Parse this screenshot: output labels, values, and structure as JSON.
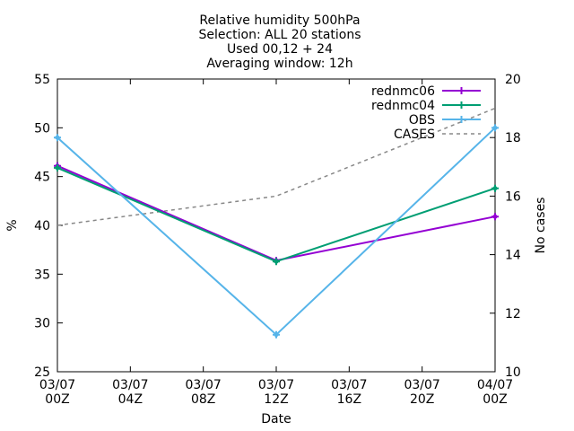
{
  "chart_data": {
    "type": "line",
    "title_lines": [
      "Relative humidity 500hPa",
      "Selection: ALL      20 stations",
      "Used 00,12 + 24",
      "Averaging window: 12h"
    ],
    "xlabel": "Date",
    "ylabel": "%",
    "y2label": "No cases",
    "x_ticks": [
      {
        "date": "03/07",
        "hour": "00Z"
      },
      {
        "date": "03/07",
        "hour": "04Z"
      },
      {
        "date": "03/07",
        "hour": "08Z"
      },
      {
        "date": "03/07",
        "hour": "12Z"
      },
      {
        "date": "03/07",
        "hour": "16Z"
      },
      {
        "date": "03/07",
        "hour": "20Z"
      },
      {
        "date": "04/07",
        "hour": "00Z"
      }
    ],
    "x_hours_range": [
      0,
      24
    ],
    "ylim": [
      25,
      55
    ],
    "y_ticks": [
      25,
      30,
      35,
      40,
      45,
      50,
      55
    ],
    "y2lim": [
      10,
      20
    ],
    "y2_ticks": [
      10,
      12,
      14,
      16,
      18,
      20
    ],
    "legend_position": "top-right",
    "series": [
      {
        "name": "rednmc06",
        "color": "#9400d3",
        "axis": "y",
        "marker": "plus",
        "points": [
          {
            "hour": 0,
            "value": 46.1
          },
          {
            "hour": 12,
            "value": 36.4
          },
          {
            "hour": 24,
            "value": 40.9
          }
        ]
      },
      {
        "name": "rednmc04",
        "color": "#009e73",
        "axis": "y",
        "marker": "plus",
        "points": [
          {
            "hour": 0,
            "value": 45.9
          },
          {
            "hour": 12,
            "value": 36.3
          },
          {
            "hour": 24,
            "value": 43.8
          }
        ]
      },
      {
        "name": "OBS",
        "color": "#56b4e9",
        "axis": "y",
        "marker": "plus",
        "points": [
          {
            "hour": 0,
            "value": 49.0
          },
          {
            "hour": 12,
            "value": 28.8
          },
          {
            "hour": 24,
            "value": 50.0
          }
        ]
      },
      {
        "name": "CASES",
        "color": "#888888",
        "axis": "y2",
        "marker": "none",
        "dashed": true,
        "points": [
          {
            "hour": 0,
            "value": 15.0
          },
          {
            "hour": 12,
            "value": 16.0
          },
          {
            "hour": 24,
            "value": 19.0
          }
        ]
      }
    ]
  }
}
